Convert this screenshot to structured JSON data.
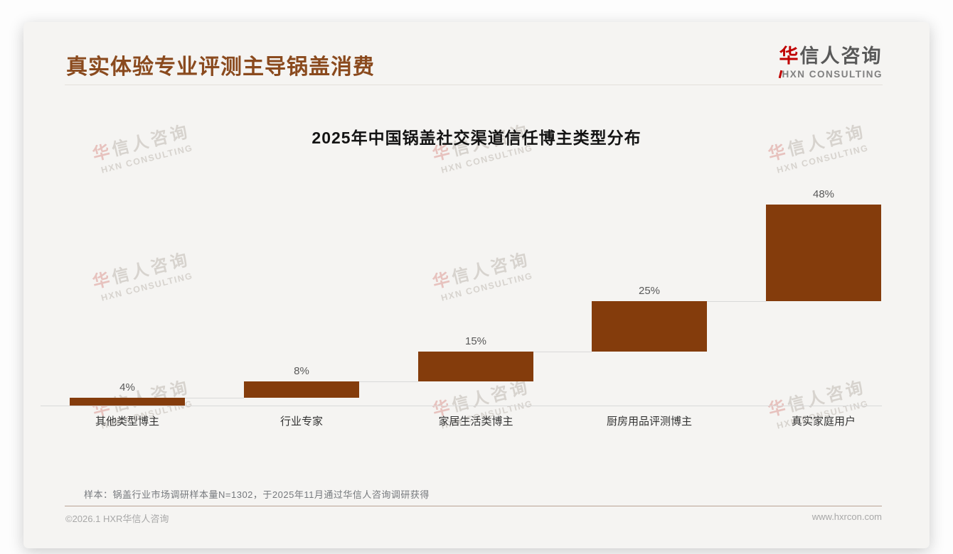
{
  "page": {
    "title": "真实体验专业评测主导锅盖消费",
    "logo": {
      "zh_first": "华",
      "zh_rest": "信人咨询",
      "en": "HXN CONSULTING"
    },
    "watermark": {
      "zh_first": "华",
      "zh_rest": "信人咨询",
      "en": "HXN CONSULTING"
    },
    "footnote": "样本：锅盖行业市场调研样本量N=1302，于2025年11月通过华信人咨询调研获得",
    "copyright": "©2026.1 HXR华信人咨询",
    "website": "www.hxrcon.com"
  },
  "chart_data": {
    "type": "bar",
    "subtype": "waterfall-cumulative",
    "title": "2025年中国锅盖社交渠道信任博主类型分布",
    "categories": [
      "其他类型博主",
      "行业专家",
      "家居生活类博主",
      "厨房用品评测博主",
      "真实家庭用户"
    ],
    "values": [
      4,
      8,
      15,
      25,
      48
    ],
    "data_labels": [
      "4%",
      "8%",
      "15%",
      "25%",
      "48%"
    ],
    "ylim": [
      0,
      100
    ],
    "grid": false,
    "legend": false,
    "bar_color": "#843C0C",
    "value_label_color": "#595959",
    "axis_color": "#D9D9D9"
  },
  "colors": {
    "title_brown": "#8A4A1E",
    "logo_red": "#C00000",
    "card_background": "#F5F4F2",
    "footer_rule": "#B9A294"
  }
}
